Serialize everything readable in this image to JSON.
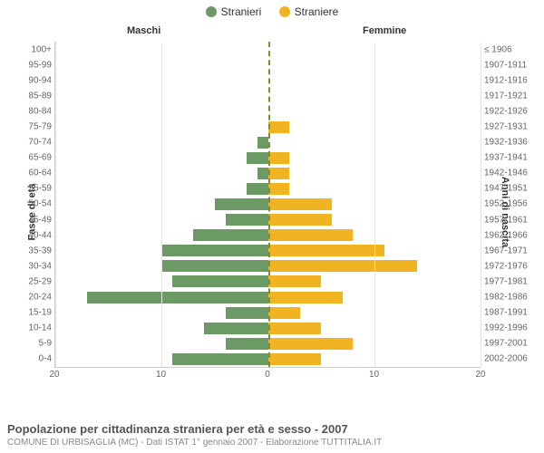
{
  "legend": {
    "male": {
      "label": "Stranieri",
      "color": "#6b9a64"
    },
    "female": {
      "label": "Straniere",
      "color": "#f0b423"
    }
  },
  "header": {
    "left": "Maschi",
    "right": "Femmine"
  },
  "axes": {
    "left_title": "Fasce di età",
    "right_title": "Anni di nascita",
    "xmax": 20,
    "ticks": [
      20,
      10,
      0,
      10,
      20
    ],
    "tick_labels": [
      "20",
      "10",
      "0",
      "10",
      "20"
    ],
    "grid_color": "#e5e5e5",
    "center_color": "#888833"
  },
  "colors": {
    "background": "#ffffff",
    "text": "#333333",
    "muted": "#666666"
  },
  "rows": [
    {
      "age": "100+",
      "birth": "≤ 1906",
      "m": 0,
      "f": 0
    },
    {
      "age": "95-99",
      "birth": "1907-1911",
      "m": 0,
      "f": 0
    },
    {
      "age": "90-94",
      "birth": "1912-1916",
      "m": 0,
      "f": 0
    },
    {
      "age": "85-89",
      "birth": "1917-1921",
      "m": 0,
      "f": 0
    },
    {
      "age": "80-84",
      "birth": "1922-1926",
      "m": 0,
      "f": 0
    },
    {
      "age": "75-79",
      "birth": "1927-1931",
      "m": 0,
      "f": 2
    },
    {
      "age": "70-74",
      "birth": "1932-1936",
      "m": 1,
      "f": 0
    },
    {
      "age": "65-69",
      "birth": "1937-1941",
      "m": 2,
      "f": 2
    },
    {
      "age": "60-64",
      "birth": "1942-1946",
      "m": 1,
      "f": 2
    },
    {
      "age": "55-59",
      "birth": "1947-1951",
      "m": 2,
      "f": 2
    },
    {
      "age": "50-54",
      "birth": "1952-1956",
      "m": 5,
      "f": 6
    },
    {
      "age": "45-49",
      "birth": "1957-1961",
      "m": 4,
      "f": 6
    },
    {
      "age": "40-44",
      "birth": "1962-1966",
      "m": 7,
      "f": 8
    },
    {
      "age": "35-39",
      "birth": "1967-1971",
      "m": 10,
      "f": 11
    },
    {
      "age": "30-34",
      "birth": "1972-1976",
      "m": 10,
      "f": 14
    },
    {
      "age": "25-29",
      "birth": "1977-1981",
      "m": 9,
      "f": 5
    },
    {
      "age": "20-24",
      "birth": "1982-1986",
      "m": 17,
      "f": 7
    },
    {
      "age": "15-19",
      "birth": "1987-1991",
      "m": 4,
      "f": 3
    },
    {
      "age": "10-14",
      "birth": "1992-1996",
      "m": 6,
      "f": 5
    },
    {
      "age": "5-9",
      "birth": "1997-2001",
      "m": 4,
      "f": 8
    },
    {
      "age": "0-4",
      "birth": "2002-2006",
      "m": 9,
      "f": 5
    }
  ],
  "footer": {
    "title": "Popolazione per cittadinanza straniera per età e sesso - 2007",
    "sub": "COMUNE DI URBISAGLIA (MC) - Dati ISTAT 1° gennaio 2007 - Elaborazione TUTTITALIA.IT"
  }
}
